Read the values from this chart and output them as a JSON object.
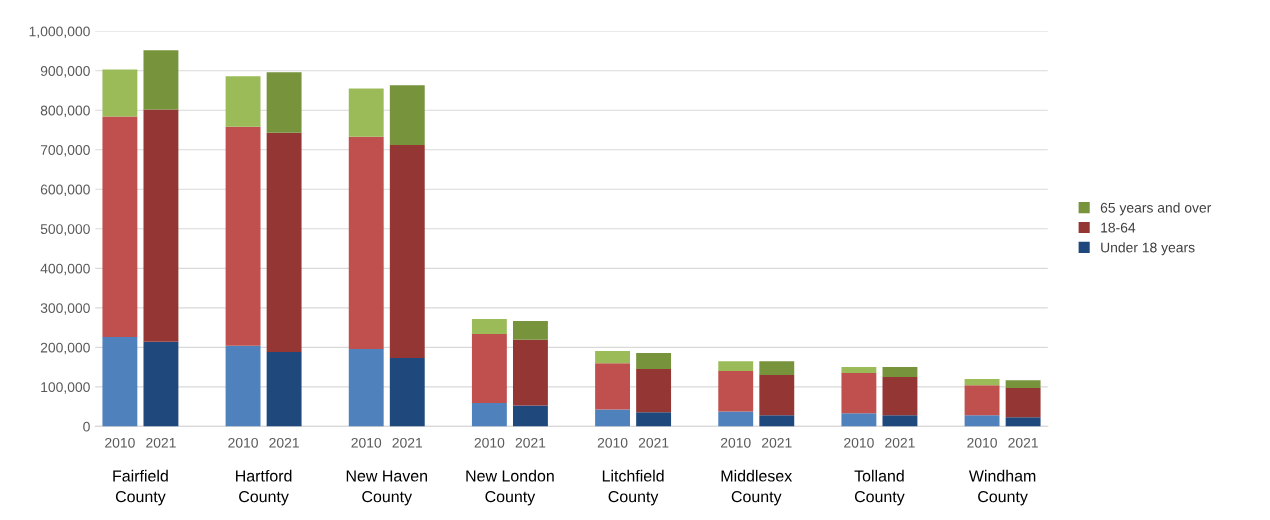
{
  "chart_data": {
    "type": "bar",
    "stacked": true,
    "categories": [
      "2010",
      "2021",
      null,
      "2010",
      "2021",
      null,
      "2010",
      "2021",
      null,
      "2010",
      "2021",
      null,
      "2010",
      "2021",
      null,
      "2010",
      "2021",
      null,
      "2010",
      "2021",
      null,
      "2010",
      "2021"
    ],
    "series": [
      {
        "name": "Under 18 years",
        "color": "#1f497d",
        "colors": [
          "#4f81bd",
          "#1f497d",
          null,
          "#4f81bd",
          "#1f497d",
          null,
          "#4f81bd",
          "#1f497d",
          null,
          "#4f81bd",
          "#1f497d",
          null,
          "#4f81bd",
          "#1f497d",
          null,
          "#4f81bd",
          "#1f497d",
          null,
          "#4f81bd",
          "#1f497d",
          null,
          "#4f81bd",
          "#1f497d"
        ],
        "values": [
          226000,
          214000,
          null,
          204000,
          188000,
          null,
          196000,
          173000,
          null,
          59000,
          53000,
          null,
          43000,
          36000,
          null,
          38000,
          28000,
          null,
          33000,
          28000,
          null,
          28000,
          23000
        ]
      },
      {
        "name": "18-64",
        "color": "#943634",
        "colors": [
          "#c0504d",
          "#943634",
          null,
          "#c0504d",
          "#943634",
          null,
          "#c0504d",
          "#943634",
          null,
          "#c0504d",
          "#943634",
          null,
          "#c0504d",
          "#943634",
          null,
          "#c0504d",
          "#943634",
          null,
          "#c0504d",
          "#943634",
          null,
          "#c0504d",
          "#943634"
        ],
        "values": [
          558000,
          588000,
          null,
          554000,
          555000,
          null,
          537000,
          539000,
          null,
          175000,
          166000,
          null,
          117000,
          109000,
          null,
          102000,
          102000,
          null,
          102000,
          97000,
          null,
          76000,
          74000
        ]
      },
      {
        "name": "65 years and over",
        "color": "#77933c",
        "colors": [
          "#9bbb59",
          "#77933c",
          null,
          "#9bbb59",
          "#77933c",
          null,
          "#9bbb59",
          "#77933c",
          null,
          "#9bbb59",
          "#77933c",
          null,
          "#9bbb59",
          "#77933c",
          null,
          "#9bbb59",
          "#77933c",
          null,
          "#9bbb59",
          "#77933c",
          null,
          "#9bbb59",
          "#77933c"
        ],
        "values": [
          119000,
          150000,
          null,
          128000,
          153000,
          null,
          122000,
          151000,
          null,
          38000,
          48000,
          null,
          31000,
          41000,
          null,
          25000,
          35000,
          null,
          15000,
          25000,
          null,
          16000,
          20000
        ]
      }
    ],
    "ylim": [
      0,
      1000000
    ],
    "yticks": [
      {
        "value": 0,
        "label": "0"
      },
      {
        "value": 100000,
        "label": "100,000"
      },
      {
        "value": 200000,
        "label": "200,000"
      },
      {
        "value": 300000,
        "label": "300,000"
      },
      {
        "value": 400000,
        "label": "400,000"
      },
      {
        "value": 500000,
        "label": "500,000"
      },
      {
        "value": 600000,
        "label": "600,000"
      },
      {
        "value": 700000,
        "label": "700,000"
      },
      {
        "value": 800000,
        "label": "800,000"
      },
      {
        "value": 900000,
        "label": "900,000"
      },
      {
        "value": 1000000,
        "label": "1,000,000"
      }
    ],
    "annotations": [
      "Fairfield\nCounty",
      "Hartford\nCounty",
      "New Haven\nCounty",
      "New London\nCounty",
      "Litchfield\nCounty",
      "Middlesex\nCounty",
      "Tolland\nCounty",
      "Windham\nCounty"
    ],
    "grid": "y",
    "legend": "right"
  }
}
